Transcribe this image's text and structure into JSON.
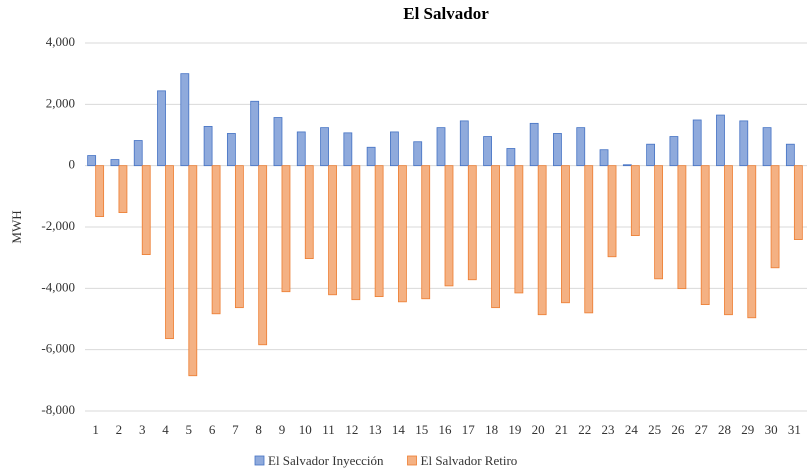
{
  "chart_data": {
    "type": "bar",
    "title": "El Salvador",
    "y_label": "MWH",
    "categories": [
      "1",
      "2",
      "3",
      "4",
      "5",
      "6",
      "7",
      "8",
      "9",
      "10",
      "11",
      "12",
      "13",
      "14",
      "15",
      "16",
      "17",
      "18",
      "19",
      "20",
      "21",
      "22",
      "23",
      "24",
      "25",
      "26",
      "27",
      "28",
      "29",
      "30",
      "31"
    ],
    "series": [
      {
        "name": "El Salvador Inyección",
        "color": "#8faadc",
        "edge": "#4472c4",
        "values": [
          330,
          200,
          820,
          2440,
          3000,
          1280,
          1050,
          2100,
          1570,
          1100,
          1240,
          1070,
          600,
          1100,
          780,
          1240,
          1460,
          950,
          560,
          1380,
          1050,
          1240,
          520,
          30,
          700,
          950,
          1490,
          1650,
          1460,
          1240,
          700
        ]
      },
      {
        "name": "El Salvador Retiro",
        "color": "#f4b183",
        "edge": "#ed7d31",
        "values": [
          -1660,
          -1530,
          -2900,
          -5640,
          -6850,
          -4830,
          -4630,
          -5840,
          -4110,
          -3030,
          -4210,
          -4370,
          -4270,
          -4440,
          -4340,
          -3920,
          -3720,
          -4630,
          -4150,
          -4860,
          -4470,
          -4800,
          -2970,
          -2280,
          -3690,
          -4010,
          -4530,
          -4860,
          -4960,
          -3330,
          -2410
        ]
      }
    ],
    "ylim": [
      -8000,
      4000
    ],
    "yticks": [
      {
        "value": -8000,
        "label": "-8,000"
      },
      {
        "value": -6000,
        "label": "-6,000"
      },
      {
        "value": -4000,
        "label": "-4,000"
      },
      {
        "value": -2000,
        "label": "-2,000"
      },
      0,
      {
        "value": 2000,
        "label": "2,000"
      },
      {
        "value": 4000,
        "label": "4,000"
      }
    ],
    "grid": true,
    "legend": "bottom"
  }
}
